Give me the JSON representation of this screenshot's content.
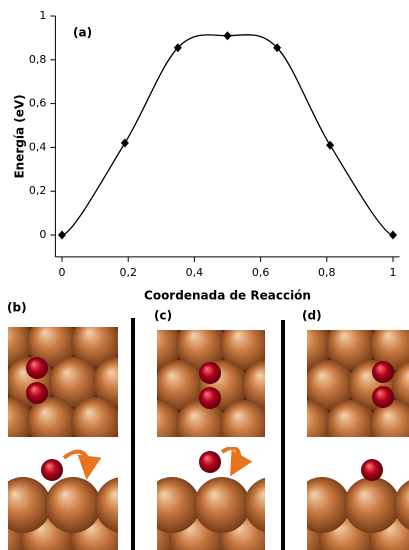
{
  "chart_data": {
    "type": "line",
    "annotation": "(a)",
    "xlabel": "Coordenada de Reacción",
    "ylabel": "Energía (eV)",
    "x": [
      0,
      0.19,
      0.35,
      0.5,
      0.65,
      0.81,
      1
    ],
    "series": [
      {
        "color": "#000000",
        "values": [
          0,
          0.42,
          0.855,
          0.91,
          0.855,
          0.41,
          0
        ]
      }
    ],
    "xlim": [
      -0.02,
      1.02
    ],
    "ylim": [
      -0.1,
      1
    ],
    "xticks": [
      0,
      {
        "value": 0.2,
        "label": "0,2"
      },
      {
        "value": 0.4,
        "label": "0,4"
      },
      {
        "value": 0.6,
        "label": "0,6"
      },
      {
        "value": 0.8,
        "label": "0,8"
      },
      1
    ],
    "yticks": [
      0,
      {
        "value": 0.2,
        "label": "0,2"
      },
      {
        "value": 0.4,
        "label": "0,4"
      },
      {
        "value": 0.6,
        "label": "0,6"
      },
      {
        "value": 0.8,
        "label": "0,8"
      },
      1
    ]
  },
  "panels": {
    "b": "(b)",
    "c": "(c)",
    "d": "(d)"
  }
}
